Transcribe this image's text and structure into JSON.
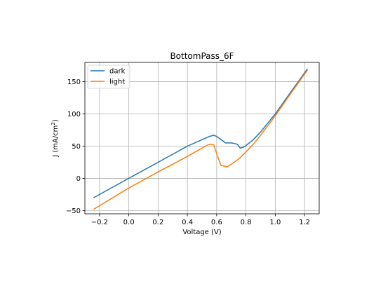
{
  "chart_data": {
    "type": "line",
    "title": "BottomPass_6F",
    "xlabel": "Voltage (V)",
    "ylabel_main": "J (mA/cm",
    "ylabel_sup": "2",
    "ylabel_close": ")",
    "xlim": [
      -0.3,
      1.3
    ],
    "ylim": [
      -55,
      180
    ],
    "xticks": [
      -0.2,
      0.0,
      0.2,
      0.4,
      0.6,
      0.8,
      1.0,
      1.2
    ],
    "xtick_labels": [
      "−0.2",
      "0.0",
      "0.2",
      "0.4",
      "0.6",
      "0.8",
      "1.0",
      "1.2"
    ],
    "yticks": [
      -50,
      0,
      50,
      100,
      150
    ],
    "ytick_labels": [
      "−50",
      "0",
      "50",
      "100",
      "150"
    ],
    "grid": true,
    "legend_position": "top-left",
    "series": [
      {
        "name": "dark",
        "color": "#1f77b4",
        "x": [
          -0.24,
          0.0,
          0.2,
          0.4,
          0.5,
          0.55,
          0.58,
          0.6,
          0.62,
          0.66,
          0.7,
          0.74,
          0.76,
          0.78,
          0.8,
          0.85,
          0.9,
          1.0,
          1.1,
          1.22
        ],
        "y": [
          -30,
          0,
          25,
          50,
          60,
          65,
          67,
          65,
          62,
          55,
          55,
          53,
          47,
          48,
          51,
          60,
          72,
          100,
          132,
          170
        ]
      },
      {
        "name": "light",
        "color": "#ff7f0e",
        "x": [
          -0.24,
          0.0,
          0.2,
          0.4,
          0.5,
          0.54,
          0.56,
          0.58,
          0.6,
          0.63,
          0.67,
          0.7,
          0.75,
          0.8,
          0.85,
          0.9,
          1.0,
          1.1,
          1.22
        ],
        "y": [
          -48,
          -15,
          10,
          34,
          47,
          52,
          53,
          52,
          38,
          20,
          18,
          22,
          30,
          41,
          53,
          67,
          97,
          130,
          168
        ]
      }
    ]
  }
}
